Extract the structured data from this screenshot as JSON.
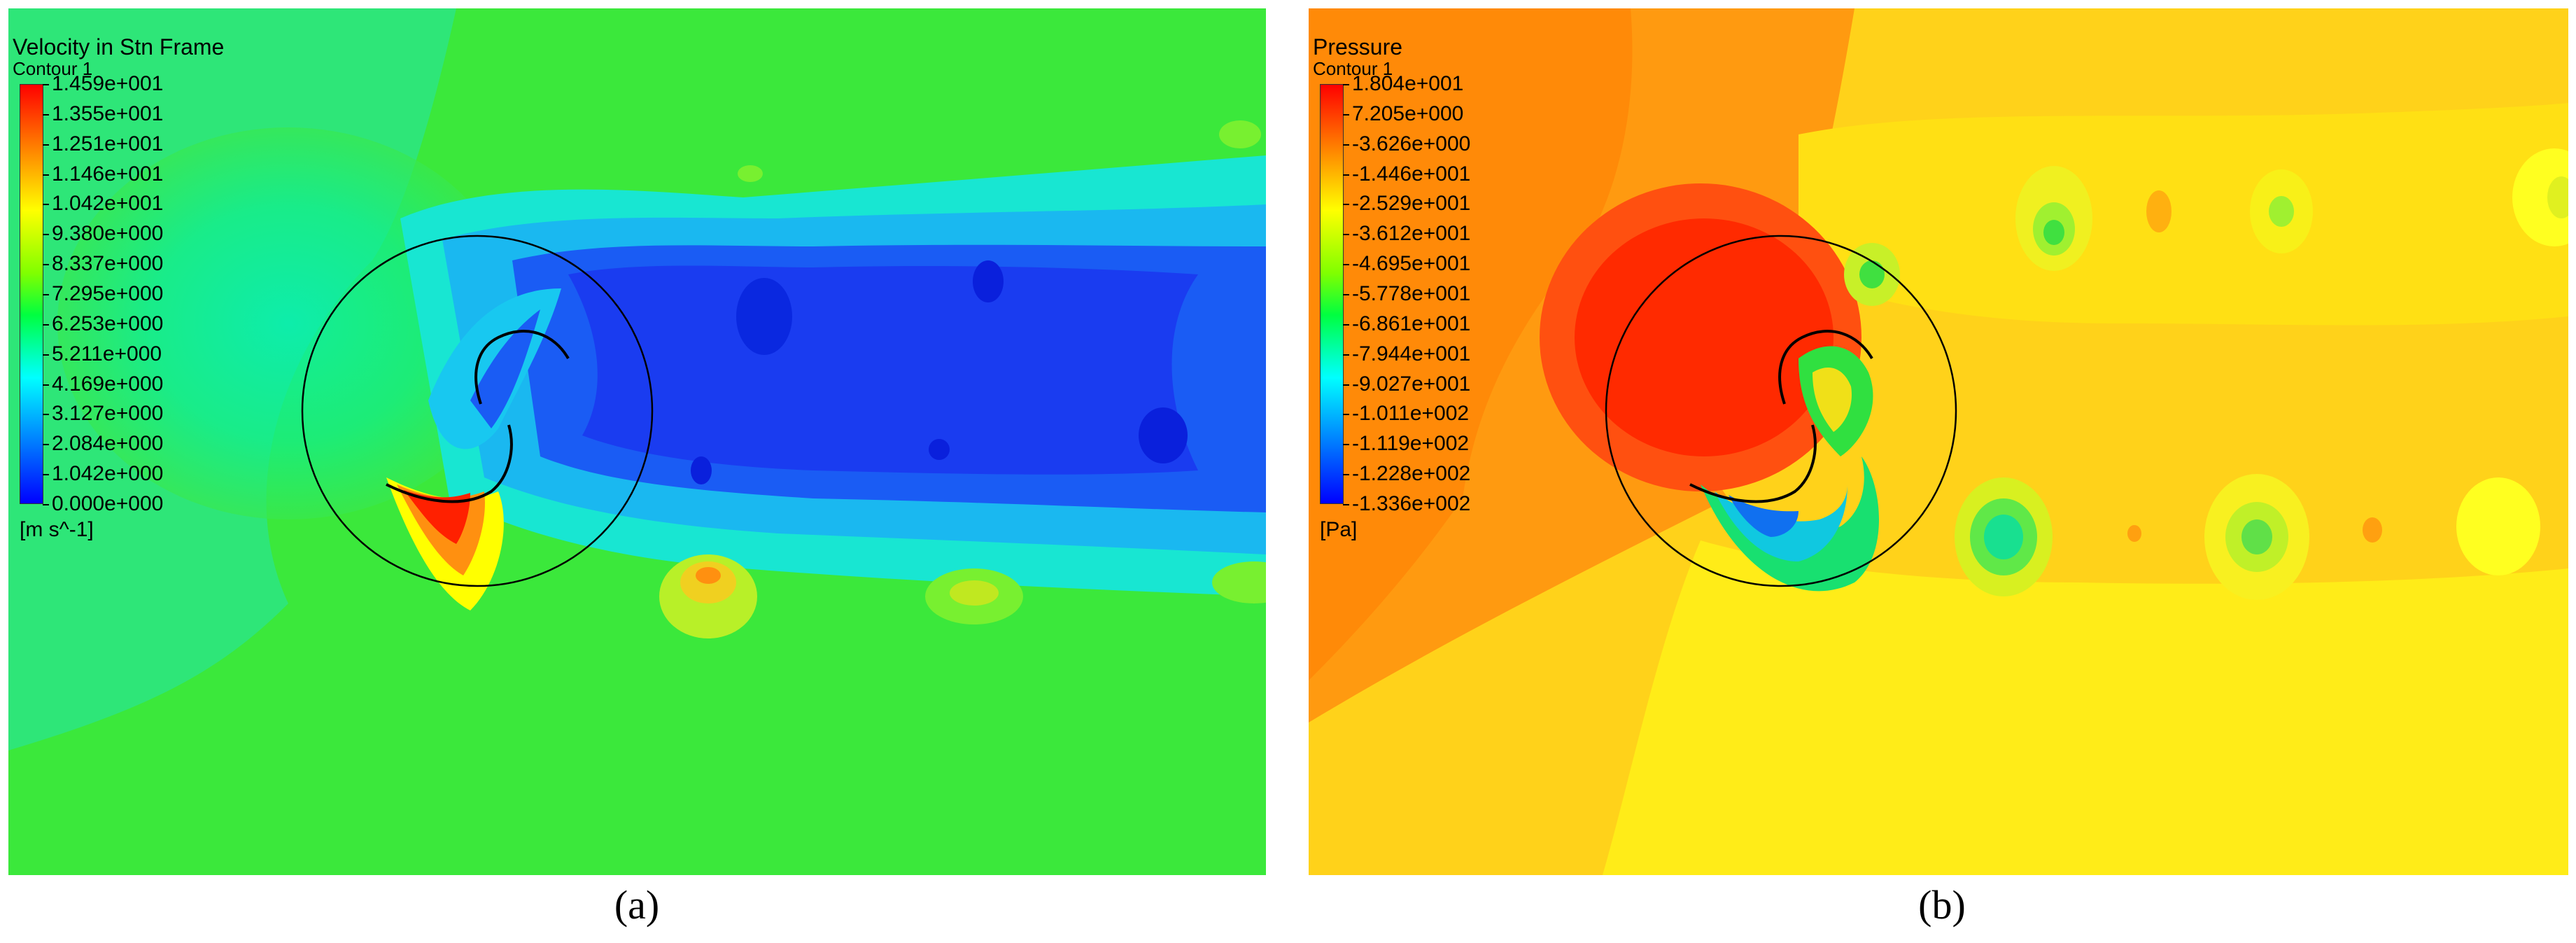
{
  "panels": [
    {
      "caption": "(a)",
      "title": "Velocity in Stn Frame",
      "subtitle": "Contour 1",
      "unit": "[m s^-1]",
      "ticks": [
        "1.459e+001",
        "1.355e+001",
        "1.251e+001",
        "1.146e+001",
        "1.042e+001",
        "9.380e+000",
        "8.337e+000",
        "7.295e+000",
        "6.253e+000",
        "5.211e+000",
        "4.169e+000",
        "3.127e+000",
        "2.084e+000",
        "1.042e+000",
        "0.000e+000"
      ],
      "colormap": "blue-to-red rainbow (low values blue, high values red)",
      "background_color": "#3be83b"
    },
    {
      "caption": "(b)",
      "title": "Pressure",
      "subtitle": "Contour 1",
      "unit": "[Pa]",
      "ticks": [
        "1.804e+001",
        "7.205e+000",
        "-3.626e+000",
        "-1.446e+001",
        "-2.529e+001",
        "-3.612e+001",
        "-4.695e+001",
        "-5.778e+001",
        "-6.861e+001",
        "-7.944e+001",
        "-9.027e+001",
        "-1.011e+002",
        "-1.119e+002",
        "-1.228e+002",
        "-1.336e+002"
      ],
      "colormap": "blue-to-red rainbow (low values blue, high values red)",
      "background_color": "#ffd21a"
    }
  ]
}
